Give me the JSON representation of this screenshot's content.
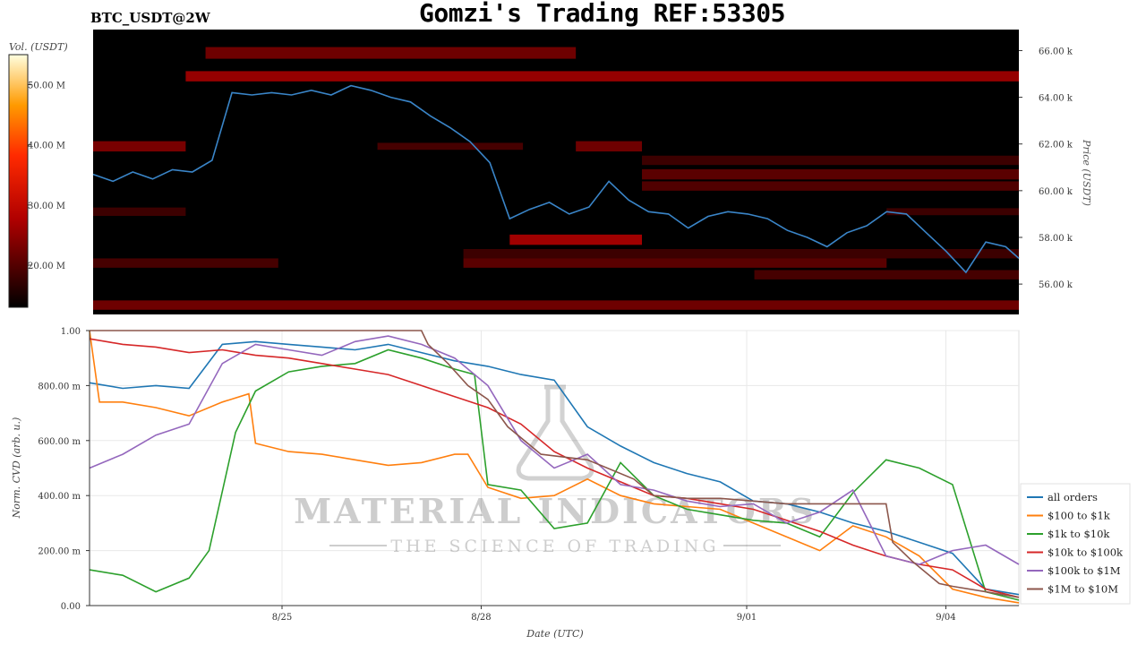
{
  "header": {
    "title": "Gomzi's Trading REF:53305",
    "pair": "BTC_USDT@2W"
  },
  "watermark": {
    "brand": "MATERIAL INDICATORS",
    "tagline": "THE SCIENCE OF TRADING"
  },
  "heatmap": {
    "colorbar_label": "Vol. (USDT)",
    "colorbar_ticks": [
      "50.00 M",
      "40.00 M",
      "30.00 M",
      "20.00 M"
    ],
    "colorbar_range": [
      13,
      55
    ],
    "price_label": "Price (USDT)",
    "price_ticks": [
      "66.00 k",
      "64.00 k",
      "62.00 k",
      "60.00 k",
      "58.00 k",
      "56.00 k"
    ],
    "price_range": [
      54.7,
      66.9
    ],
    "colors": {
      "background": "#000000",
      "line": "#3a85c8"
    }
  },
  "chart_data": {
    "type": "line",
    "xlabel": "Date (UTC)",
    "ylabel": "Norm. CVD (arb. u.)",
    "x_ticks": [
      "8/25",
      "8/28",
      "9/01",
      "9/04"
    ],
    "y_ticks": [
      "1.00",
      "800.00 m",
      "600.00 m",
      "400.00 m",
      "200.00 m",
      "0.00"
    ],
    "ylim": [
      0,
      1
    ],
    "x_range_days": [
      0,
      14
    ],
    "legend_placement": "right",
    "price_series": {
      "name": "BTC price",
      "x": [
        0,
        0.3,
        0.6,
        0.9,
        1.2,
        1.5,
        1.8,
        2.1,
        2.4,
        2.7,
        3.0,
        3.3,
        3.6,
        3.9,
        4.2,
        4.5,
        4.8,
        5.1,
        5.4,
        5.7,
        6.0,
        6.3,
        6.6,
        6.9,
        7.2,
        7.5,
        7.8,
        8.1,
        8.4,
        8.7,
        9.0,
        9.3,
        9.6,
        9.9,
        10.2,
        10.5,
        10.8,
        11.1,
        11.4,
        11.7,
        12.0,
        12.3,
        12.6,
        12.9,
        13.2,
        13.5,
        13.8,
        14.0
      ],
      "y": [
        60.7,
        60.4,
        60.8,
        60.5,
        60.9,
        60.8,
        61.3,
        64.2,
        64.1,
        64.2,
        64.1,
        64.3,
        64.1,
        64.5,
        64.3,
        64.0,
        63.8,
        63.2,
        62.7,
        62.1,
        61.2,
        58.8,
        59.2,
        59.5,
        59.0,
        59.3,
        60.4,
        59.6,
        59.1,
        59.0,
        58.4,
        58.9,
        59.1,
        59.0,
        58.8,
        58.3,
        58.0,
        57.6,
        58.2,
        58.5,
        59.1,
        59.0,
        58.2,
        57.4,
        56.5,
        57.8,
        57.6,
        57.1
      ]
    },
    "series": [
      {
        "name": "all orders",
        "color": "#1f77b4",
        "x": [
          0,
          0.5,
          1,
          1.5,
          2,
          2.5,
          3,
          3.5,
          4,
          4.5,
          5,
          5.5,
          6,
          6.5,
          7,
          7.5,
          8,
          8.5,
          9,
          9.5,
          10,
          10.5,
          11,
          11.5,
          12,
          12.5,
          13,
          13.5,
          14
        ],
        "y": [
          0.81,
          0.79,
          0.8,
          0.79,
          0.95,
          0.96,
          0.95,
          0.94,
          0.93,
          0.95,
          0.92,
          0.89,
          0.87,
          0.84,
          0.82,
          0.65,
          0.58,
          0.52,
          0.48,
          0.45,
          0.38,
          0.37,
          0.34,
          0.3,
          0.27,
          0.23,
          0.19,
          0.06,
          0.04
        ]
      },
      {
        "name": "$100 to $1k",
        "color": "#ff7f0e",
        "x": [
          0,
          0.15,
          0.5,
          1,
          1.5,
          2,
          2.4,
          2.5,
          3,
          3.5,
          4,
          4.5,
          5,
          5.5,
          5.7,
          6,
          6.5,
          7,
          7.5,
          8,
          8.5,
          9,
          9.5,
          10,
          10.5,
          11,
          11.5,
          12,
          12.5,
          13,
          13.5,
          14
        ],
        "y": [
          1.0,
          0.74,
          0.74,
          0.72,
          0.69,
          0.74,
          0.77,
          0.59,
          0.56,
          0.55,
          0.53,
          0.51,
          0.52,
          0.55,
          0.55,
          0.43,
          0.39,
          0.4,
          0.46,
          0.4,
          0.37,
          0.36,
          0.35,
          0.3,
          0.25,
          0.2,
          0.29,
          0.25,
          0.18,
          0.06,
          0.03,
          0.01
        ]
      },
      {
        "name": "$1k to $10k",
        "color": "#2ca02c",
        "x": [
          0,
          0.5,
          1,
          1.5,
          1.8,
          2.2,
          2.5,
          3,
          3.5,
          4,
          4.5,
          5,
          5.5,
          5.8,
          6,
          6.5,
          7,
          7.5,
          8,
          8.5,
          9,
          9.5,
          10,
          10.5,
          11,
          11.5,
          12,
          12.5,
          13,
          13.5,
          14
        ],
        "y": [
          0.13,
          0.11,
          0.05,
          0.1,
          0.2,
          0.63,
          0.78,
          0.85,
          0.87,
          0.88,
          0.93,
          0.9,
          0.86,
          0.84,
          0.44,
          0.42,
          0.28,
          0.3,
          0.52,
          0.4,
          0.35,
          0.33,
          0.31,
          0.3,
          0.25,
          0.41,
          0.53,
          0.5,
          0.44,
          0.05,
          0.02
        ]
      },
      {
        "name": "$10k to $100k",
        "color": "#d62728",
        "x": [
          0,
          0.5,
          1,
          1.5,
          2,
          2.5,
          3,
          3.5,
          4,
          4.5,
          5,
          5.5,
          6,
          6.5,
          7,
          7.5,
          8,
          8.5,
          9,
          9.5,
          10,
          10.5,
          11,
          11.5,
          12,
          12.5,
          13,
          13.5,
          14
        ],
        "y": [
          0.97,
          0.95,
          0.94,
          0.92,
          0.93,
          0.91,
          0.9,
          0.88,
          0.86,
          0.84,
          0.8,
          0.76,
          0.72,
          0.66,
          0.56,
          0.5,
          0.45,
          0.4,
          0.39,
          0.37,
          0.35,
          0.31,
          0.27,
          0.22,
          0.18,
          0.15,
          0.13,
          0.06,
          0.03
        ]
      },
      {
        "name": "$100k to $1M",
        "color": "#9467bd",
        "x": [
          0,
          0.5,
          1,
          1.5,
          2,
          2.5,
          3,
          3.5,
          4,
          4.5,
          5,
          5.5,
          6,
          6.5,
          7,
          7.5,
          8,
          8.5,
          9,
          9.5,
          10,
          10.5,
          11,
          11.5,
          12,
          12.5,
          13,
          13.5,
          14
        ],
        "y": [
          0.5,
          0.55,
          0.62,
          0.66,
          0.88,
          0.95,
          0.93,
          0.91,
          0.96,
          0.98,
          0.95,
          0.9,
          0.8,
          0.6,
          0.5,
          0.55,
          0.44,
          0.42,
          0.38,
          0.36,
          0.37,
          0.3,
          0.34,
          0.42,
          0.18,
          0.15,
          0.2,
          0.22,
          0.15
        ]
      },
      {
        "name": "$1M to $10M",
        "color": "#8c564b",
        "x": [
          0,
          1,
          2,
          3,
          4,
          5,
          5.1,
          5.4,
          5.7,
          6.0,
          6.3,
          6.8,
          7.5,
          8.2,
          8.5,
          9.0,
          9.5,
          10.0,
          10.5,
          11,
          11.5,
          12.0,
          12.1,
          12.4,
          12.8,
          13.0,
          13.5,
          14
        ],
        "y": [
          1.0,
          1.0,
          1.0,
          1.0,
          1.0,
          1.0,
          0.95,
          0.88,
          0.8,
          0.75,
          0.65,
          0.55,
          0.53,
          0.46,
          0.4,
          0.39,
          0.39,
          0.38,
          0.37,
          0.37,
          0.37,
          0.37,
          0.23,
          0.16,
          0.08,
          0.07,
          0.05,
          0.03
        ]
      }
    ]
  }
}
